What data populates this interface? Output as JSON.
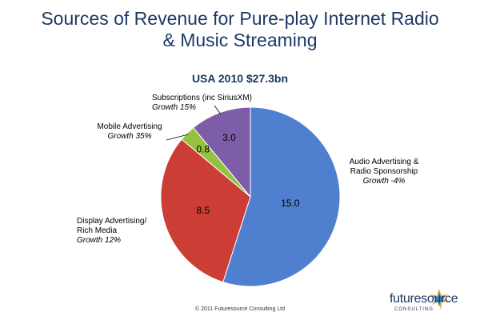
{
  "title_line1": "Sources of Revenue for Pure-play Internet Radio",
  "title_line2": "& Music Streaming",
  "copyright": "© 2011 Futuresource Consulting Ltd",
  "logo": {
    "text": "futuresource",
    "subtext": "CONSULTING"
  },
  "chart_data": {
    "type": "pie",
    "title": "USA  2010 $27.3bn",
    "slices": [
      {
        "name": "Audio Advertising & Radio Sponsorship",
        "name_lines": [
          "Audio Advertising &",
          "Radio Sponsorship"
        ],
        "growth": "Growth -4%",
        "value": 15.0,
        "value_label": "15.0",
        "color": "#4f7fcf"
      },
      {
        "name": "Display Advertising/ Rich Media",
        "name_lines": [
          "Display  Advertising/",
          "Rich Media"
        ],
        "growth": "Growth 12%",
        "value": 8.5,
        "value_label": "8.5",
        "color": "#cc3d36"
      },
      {
        "name": "Mobile Advertising",
        "name_lines": [
          "Mobile Advertising"
        ],
        "growth": "Growth 35%",
        "value": 0.8,
        "value_label": "0.8",
        "color": "#94c23f"
      },
      {
        "name": "Subscriptions (inc SiriusXM)",
        "name_lines": [
          "Subscriptions (inc SiriusXM)"
        ],
        "growth": "Growth 15%",
        "value": 3.0,
        "value_label": "3.0",
        "color": "#7d5ca8"
      }
    ]
  }
}
